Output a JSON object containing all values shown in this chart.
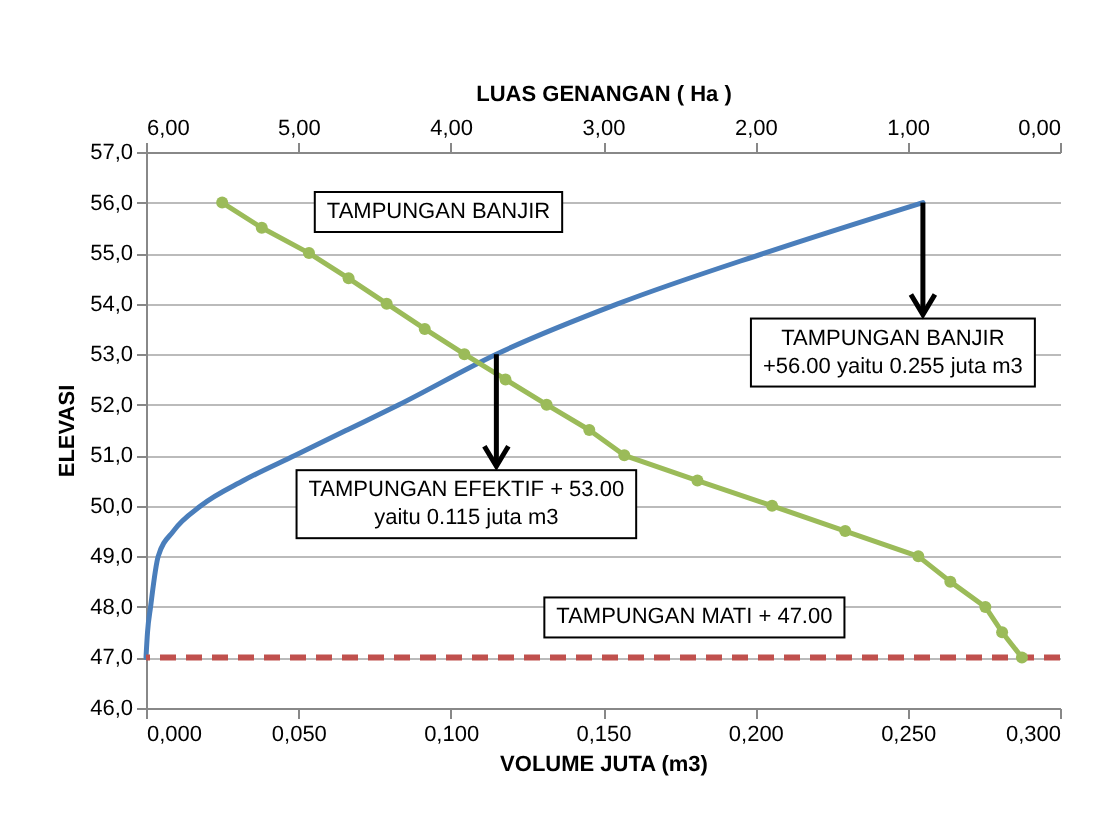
{
  "chart_data": {
    "type": "line",
    "xlabel": "VOLUME JUTA (m3)",
    "ylabel": "ELEVASI",
    "x2label": "LUAS GENANGAN ( Ha )",
    "xlim": [
      0,
      0.3
    ],
    "xticks": [
      {
        "value": 0,
        "label": "0,000"
      },
      {
        "value": 0.05,
        "label": "0,050"
      },
      {
        "value": 0.1,
        "label": "0,100"
      },
      {
        "value": 0.15,
        "label": "0,150"
      },
      {
        "value": 0.2,
        "label": "0,200"
      },
      {
        "value": 0.25,
        "label": "0,250"
      },
      {
        "value": 0.3,
        "label": "0,300"
      }
    ],
    "x2lim": [
      6,
      0
    ],
    "x2ticks": [
      {
        "value": 6,
        "label": "6,00"
      },
      {
        "value": 5,
        "label": "5,00"
      },
      {
        "value": 4,
        "label": "4,00"
      },
      {
        "value": 3,
        "label": "3,00"
      },
      {
        "value": 2,
        "label": "2,00"
      },
      {
        "value": 1,
        "label": "1,00"
      },
      {
        "value": 0,
        "label": "0,00"
      }
    ],
    "ylim": [
      46,
      57
    ],
    "yticks": [
      {
        "value": 46,
        "label": "46,0"
      },
      {
        "value": 47,
        "label": "47,0"
      },
      {
        "value": 48,
        "label": "48,0"
      },
      {
        "value": 49,
        "label": "49,0"
      },
      {
        "value": 50,
        "label": "50,0"
      },
      {
        "value": 51,
        "label": "51,0"
      },
      {
        "value": 52,
        "label": "52,0"
      },
      {
        "value": 53,
        "label": "53,0"
      },
      {
        "value": 54,
        "label": "54,0"
      },
      {
        "value": 55,
        "label": "55,0"
      },
      {
        "value": 56,
        "label": "56,0"
      },
      {
        "value": 57,
        "label": "57,0"
      }
    ],
    "grid": "y",
    "line_style": "solid",
    "series": [
      {
        "color": "#4a7ebb",
        "marker": "none",
        "x": [
          0,
          0.0005,
          0.0015,
          0.004,
          0.009,
          0.018,
          0.032,
          0.049,
          0.066,
          0.083,
          0.115,
          0.155,
          0.203,
          0.255
        ],
        "values": [
          47,
          47.5,
          48,
          49,
          49.5,
          50,
          50.5,
          51,
          51.5,
          52,
          53,
          54,
          55,
          56
        ]
      },
      {
        "color": "#9bbb59",
        "marker": "circle",
        "axis": "x2",
        "x": [
          5.5,
          5.24,
          4.93,
          4.67,
          4.42,
          4.17,
          3.91,
          3.64,
          3.37,
          3.09,
          2.86,
          2.38,
          1.89,
          1.41,
          0.93,
          0.72,
          0.49,
          0.38,
          0.25
        ],
        "values": [
          56,
          55.5,
          55,
          54.5,
          54,
          53.5,
          53,
          52.5,
          52,
          51.5,
          51,
          50.5,
          50,
          49.5,
          49,
          48.5,
          48,
          47.5,
          47
        ]
      }
    ],
    "ref_lines": [
      {
        "axis": "y",
        "value": 47,
        "label": "TAMPUNGAN MATI + 47.00",
        "color": "#c0504d",
        "line_style": "dashed"
      }
    ],
    "annotations": [
      "TAMPUNGAN BANJIR",
      {
        "text": "TAMPUNGAN BANJIR\n+56.00 yaitu 0.255 juta m3",
        "x": 0.255,
        "y": 56
      },
      {
        "text": "TAMPUNGAN EFEKTIF + 53.00\nyaitu  0.115  juta m3",
        "x": 0.115,
        "y": 53
      }
    ]
  }
}
